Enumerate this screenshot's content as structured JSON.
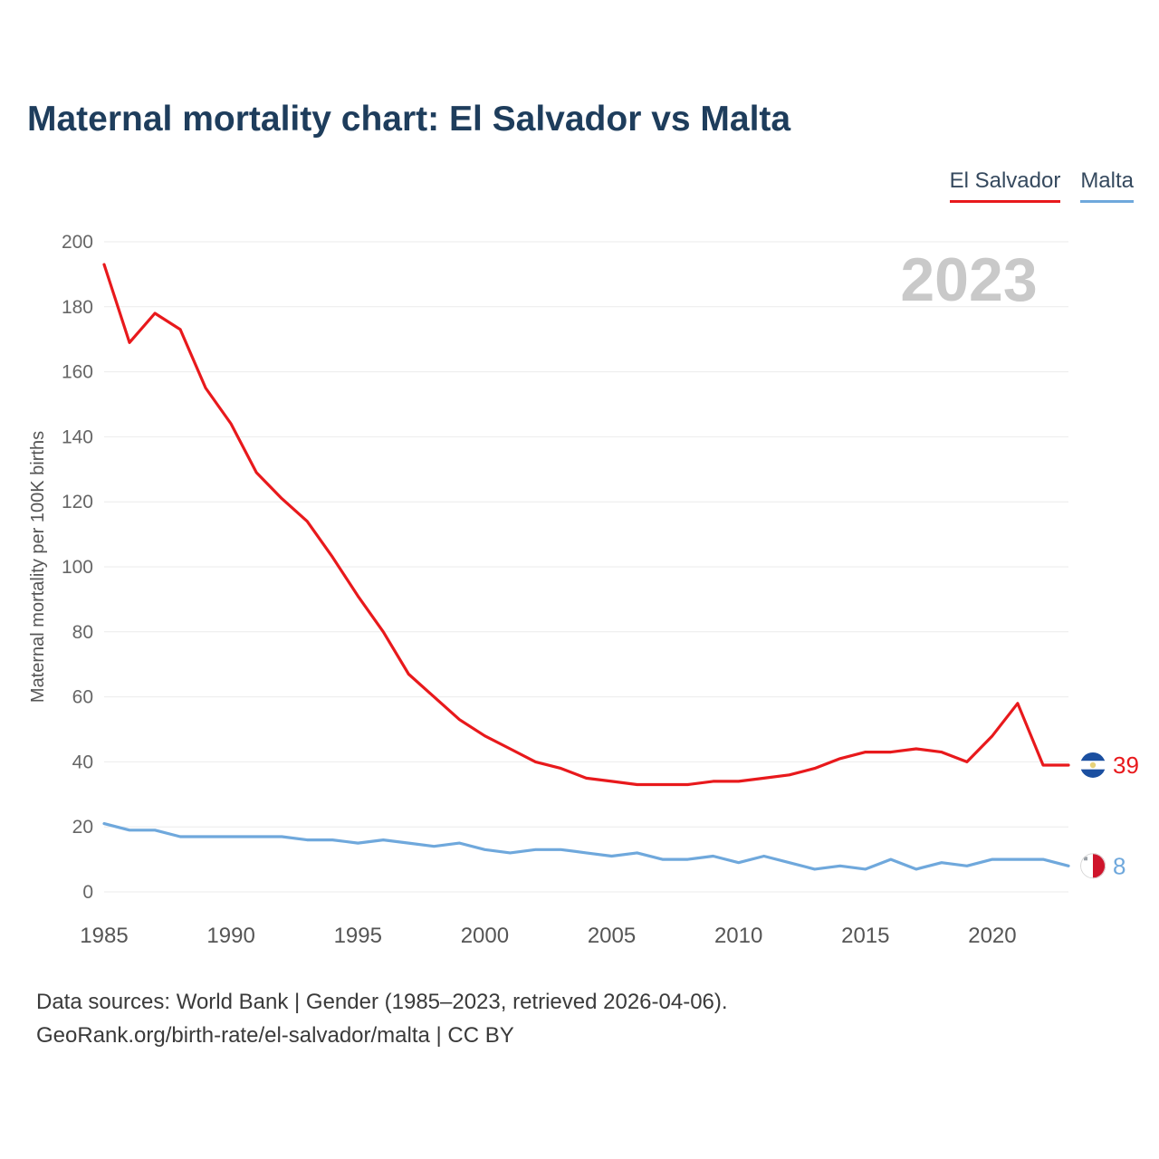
{
  "title": "Maternal mortality chart: El Salvador vs Malta",
  "watermark": "2023",
  "legend": [
    {
      "label": "El Salvador",
      "color": "#e8191c"
    },
    {
      "label": "Malta",
      "color": "#6fa8dc"
    }
  ],
  "footer": {
    "line1": "Data sources: World Bank | Gender (1985–2023, retrieved 2026-04-06).",
    "line2": "GeoRank.org/birth-rate/el-salvador/malta | CC BY"
  },
  "chart_data": {
    "type": "line",
    "title": "Maternal mortality chart: El Salvador vs Malta",
    "xlabel": "",
    "ylabel": "Maternal mortality per 100K births",
    "x_range": [
      1985,
      2023
    ],
    "ylim": [
      0,
      200
    ],
    "y_ticks": [
      0,
      20,
      40,
      60,
      80,
      100,
      120,
      140,
      160,
      180,
      200
    ],
    "x_ticks": [
      1985,
      1990,
      1995,
      2000,
      2005,
      2010,
      2015,
      2020
    ],
    "grid": true,
    "legend_position": "top-right",
    "years": [
      1985,
      1986,
      1987,
      1988,
      1989,
      1990,
      1991,
      1992,
      1993,
      1994,
      1995,
      1996,
      1997,
      1998,
      1999,
      2000,
      2001,
      2002,
      2003,
      2004,
      2005,
      2006,
      2007,
      2008,
      2009,
      2010,
      2011,
      2012,
      2013,
      2014,
      2015,
      2016,
      2017,
      2018,
      2019,
      2020,
      2021,
      2022,
      2023
    ],
    "series": [
      {
        "name": "El Salvador",
        "color": "#e8191c",
        "end_label": "39",
        "values": [
          193,
          169,
          178,
          173,
          155,
          144,
          129,
          121,
          114,
          103,
          91,
          80,
          67,
          60,
          53,
          48,
          44,
          40,
          38,
          35,
          34,
          33,
          33,
          33,
          34,
          34,
          35,
          36,
          38,
          41,
          43,
          43,
          44,
          43,
          40,
          48,
          58,
          39,
          39
        ]
      },
      {
        "name": "Malta",
        "color": "#6fa8dc",
        "end_label": "8",
        "values": [
          21,
          19,
          19,
          17,
          17,
          17,
          17,
          17,
          16,
          16,
          15,
          16,
          15,
          14,
          15,
          13,
          12,
          13,
          13,
          12,
          11,
          12,
          10,
          10,
          11,
          9,
          11,
          9,
          7,
          8,
          7,
          10,
          7,
          9,
          8,
          10,
          10,
          10,
          8
        ]
      }
    ]
  }
}
